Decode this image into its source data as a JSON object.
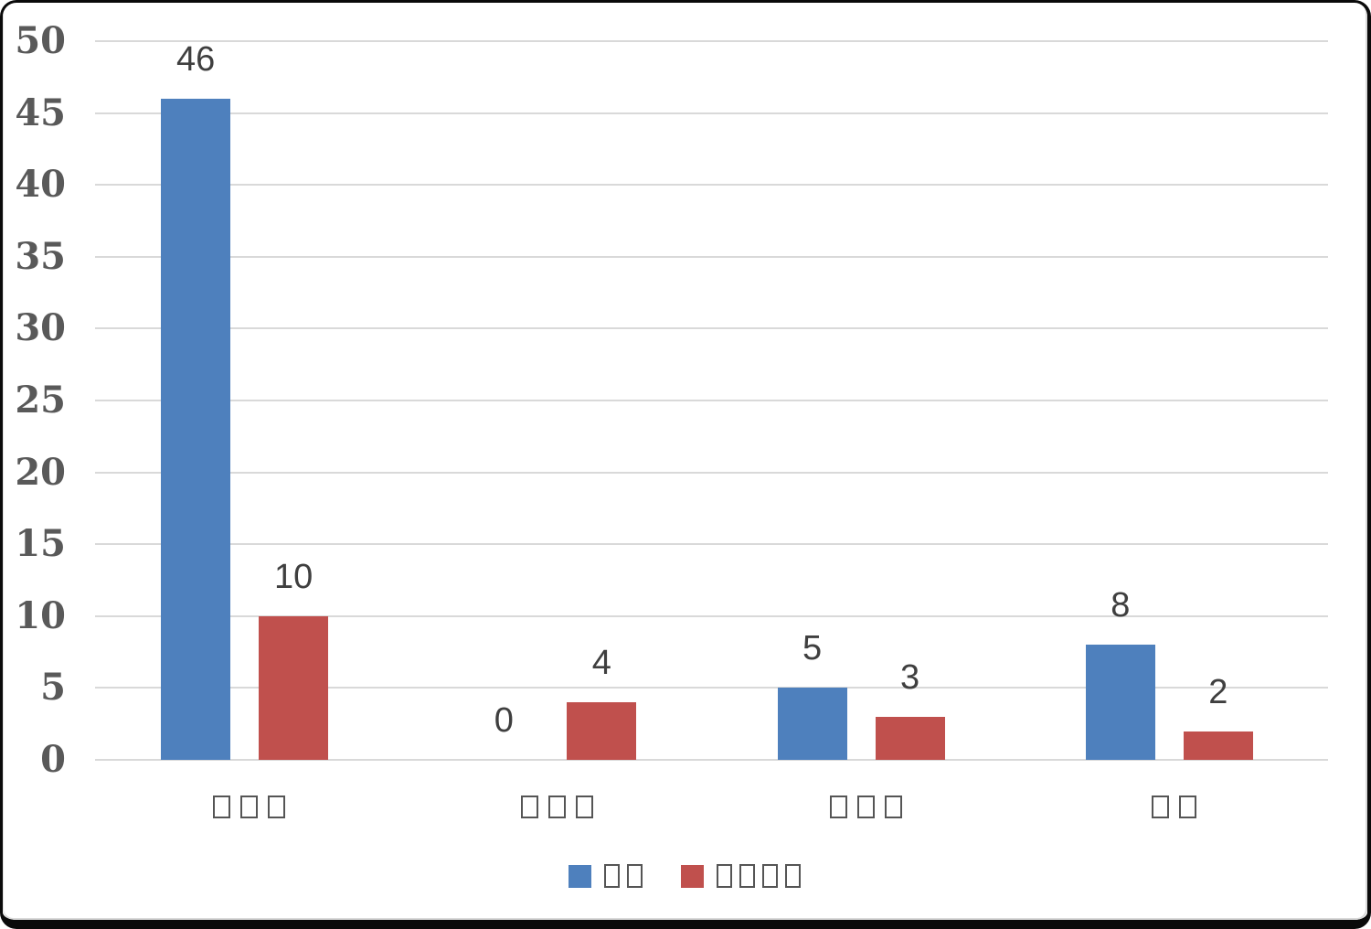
{
  "window": {
    "background": "#ffffff",
    "frame_border_color": "#0a0a0a",
    "inner_edge_color": "#d9d9d9"
  },
  "chart_data": {
    "type": "bar",
    "title": "",
    "note_on_text": "category and legend labels are displayed as missing-glyph boxes (tofu) in the pixels; each □ below represents one displayed box glyph",
    "categories": [
      "□□□",
      "□□□",
      "□□□",
      "□□"
    ],
    "series": [
      {
        "name": "□□",
        "color": "#4e80bd",
        "values": [
          46,
          0,
          5,
          8
        ]
      },
      {
        "name": "□□□□",
        "color": "#c0504d",
        "values": [
          10,
          4,
          3,
          2
        ]
      }
    ],
    "value_labels_shown": true,
    "ylim": [
      0,
      50
    ],
    "yticks": [
      0,
      5,
      10,
      15,
      20,
      25,
      30,
      35,
      40,
      45,
      50
    ],
    "grid": "horizontal",
    "legend_position": "bottom",
    "colors": {
      "gridline": "#d9d9d9",
      "axis_tick_text": "#595959",
      "value_label_text": "#3f3f3f",
      "tofu_box_border": "#555555",
      "series1": "#4e80bd",
      "series2": "#c0504d"
    }
  }
}
